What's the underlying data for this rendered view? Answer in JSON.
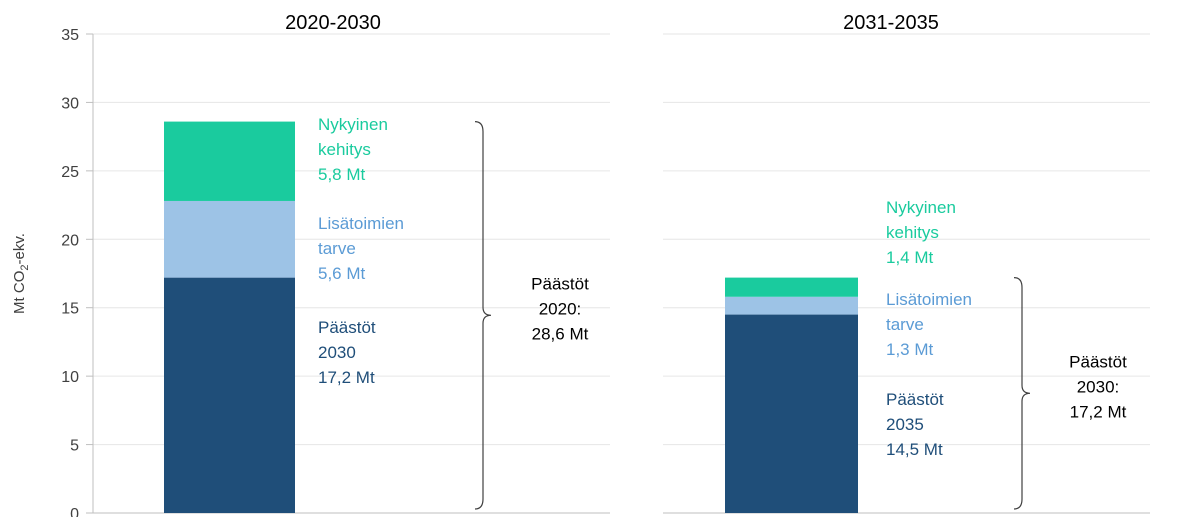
{
  "chart_data": {
    "type": "bar",
    "stacked": true,
    "ylabel": "Mt CO₂-ekv.",
    "ylabel_parts": {
      "prefix": "Mt CO",
      "sub": "2",
      "suffix": "-ekv."
    },
    "ylim": [
      0,
      35
    ],
    "yticks": [
      "0",
      "5",
      "10",
      "15",
      "20",
      "25",
      "30",
      "35"
    ],
    "grid": true,
    "colors": {
      "bottom": "#1f4e79",
      "middle": "#9dc3e6",
      "top": "#1acb9e",
      "axis": "#bfbfbf",
      "grid": "#e6e6e6"
    },
    "panels": [
      {
        "title": "2020-2030",
        "segments": [
          {
            "name": "Päästöt 2030",
            "value": 17.2,
            "lines": [
              "Päästöt",
              "2030",
              "17,2 Mt"
            ]
          },
          {
            "name": "Lisätoimien tarve",
            "value": 5.6,
            "lines": [
              "Lisätoimien",
              "tarve",
              "5,6 Mt"
            ]
          },
          {
            "name": "Nykyinen kehitys",
            "value": 5.8,
            "lines": [
              "Nykyinen",
              "kehitys",
              "5,8 Mt"
            ]
          }
        ],
        "brace_label": [
          "Päästöt",
          "2020:",
          "28,6 Mt"
        ]
      },
      {
        "title": "2031-2035",
        "segments": [
          {
            "name": "Päästöt 2035",
            "value": 14.5,
            "lines": [
              "Päästöt",
              "2035",
              "14,5 Mt"
            ]
          },
          {
            "name": "Lisätoimien tarve",
            "value": 1.3,
            "lines": [
              "Lisätoimien",
              "tarve",
              "1,3 Mt"
            ]
          },
          {
            "name": "Nykyinen kehitys",
            "value": 1.4,
            "lines": [
              "Nykyinen",
              "kehitys",
              "1,4 Mt"
            ]
          }
        ],
        "brace_label": [
          "Päästöt",
          "2030:",
          "17,2 Mt"
        ]
      }
    ]
  }
}
